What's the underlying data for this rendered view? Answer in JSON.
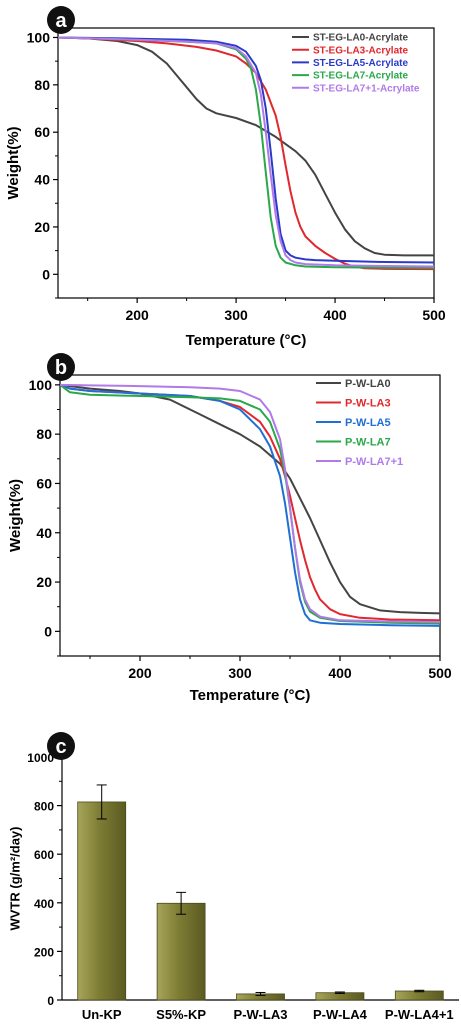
{
  "chart_data": [
    {
      "type": "line",
      "panel_label": "a",
      "title": "",
      "xlabel": "Temperature (°C)",
      "ylabel": "Weight(%)",
      "xlim": [
        120,
        500
      ],
      "ylim": [
        -10,
        104
      ],
      "xticks": [
        200,
        300,
        400,
        500
      ],
      "yticks": [
        0,
        20,
        40,
        60,
        80,
        100
      ],
      "grid": false,
      "legend_position": "top-right",
      "series": [
        {
          "name": "ST-EG-LA0-Acrylate",
          "color": "#444444",
          "x": [
            120,
            150,
            180,
            200,
            215,
            230,
            240,
            250,
            260,
            270,
            280,
            300,
            320,
            340,
            360,
            370,
            380,
            390,
            400,
            410,
            420,
            430,
            440,
            450,
            470,
            500
          ],
          "y": [
            100,
            99.6,
            98.5,
            96.8,
            94,
            89,
            84,
            79,
            74,
            70,
            68,
            66,
            63,
            58,
            52,
            48,
            42,
            34,
            26,
            19,
            14,
            11,
            9,
            8.3,
            8,
            8
          ]
        },
        {
          "name": "ST-EG-LA3-Acrylate",
          "color": "#e0282d",
          "x": [
            120,
            150,
            200,
            230,
            260,
            280,
            300,
            310,
            320,
            330,
            340,
            345,
            350,
            355,
            360,
            365,
            370,
            380,
            390,
            400,
            410,
            420,
            430,
            450,
            500
          ],
          "y": [
            100,
            99.6,
            98.5,
            97.5,
            96,
            94.5,
            92,
            89,
            85,
            78,
            67,
            58,
            46,
            35,
            26,
            20,
            16,
            12,
            9,
            6.5,
            4.5,
            3.2,
            2.6,
            2.3,
            2.2
          ]
        },
        {
          "name": "ST-EG-LA5-Acrylate",
          "color": "#2a3bc9",
          "x": [
            120,
            150,
            200,
            250,
            280,
            300,
            310,
            320,
            325,
            330,
            335,
            340,
            345,
            350,
            355,
            360,
            370,
            380,
            400,
            450,
            500
          ],
          "y": [
            100,
            99.8,
            99.5,
            99,
            98.2,
            96.5,
            94,
            88,
            82,
            70,
            52,
            32,
            17,
            10,
            8,
            7,
            6.3,
            6,
            5.7,
            5.2,
            5
          ]
        },
        {
          "name": "ST-EG-LA7-Acrylate",
          "color": "#2aa84a",
          "x": [
            120,
            150,
            200,
            250,
            280,
            300,
            310,
            315,
            320,
            325,
            330,
            335,
            340,
            345,
            350,
            360,
            370,
            400,
            450,
            500
          ],
          "y": [
            100,
            99.7,
            99,
            98.2,
            97.5,
            95,
            91,
            87,
            78,
            63,
            43,
            24,
            12,
            7,
            5,
            3.8,
            3.3,
            3,
            2.8,
            2.7
          ]
        },
        {
          "name": "ST-EG-LA7+1-Acrylate",
          "color": "#b07ae8",
          "x": [
            120,
            150,
            200,
            250,
            280,
            300,
            310,
            320,
            325,
            330,
            335,
            340,
            345,
            350,
            355,
            360,
            370,
            400,
            450,
            500
          ],
          "y": [
            100,
            99.7,
            99,
            98.3,
            97.5,
            95.5,
            92,
            85,
            76,
            60,
            42,
            25,
            14,
            8,
            6,
            5,
            4.3,
            3.8,
            3.5,
            3.3
          ]
        }
      ]
    },
    {
      "type": "line",
      "panel_label": "b",
      "title": "",
      "xlabel": "Temperature (°C)",
      "ylabel": "Weight(%)",
      "xlim": [
        120,
        500
      ],
      "ylim": [
        -10,
        104
      ],
      "xticks": [
        200,
        300,
        400,
        500
      ],
      "yticks": [
        0,
        20,
        40,
        60,
        80,
        100
      ],
      "grid": false,
      "legend_position": "top-right",
      "series": [
        {
          "name": "P-W-LA0",
          "color": "#444444",
          "x": [
            120,
            150,
            180,
            200,
            230,
            260,
            280,
            300,
            320,
            340,
            350,
            360,
            370,
            380,
            390,
            400,
            410,
            420,
            440,
            460,
            480,
            500
          ],
          "y": [
            100,
            98.5,
            97.5,
            96.5,
            94,
            88,
            84,
            80,
            75,
            68,
            62,
            54,
            46,
            37,
            28,
            20,
            14,
            11,
            8.5,
            7.8,
            7.5,
            7.3
          ]
        },
        {
          "name": "P-W-LA3",
          "color": "#e0282d",
          "x": [
            120,
            130,
            150,
            200,
            250,
            280,
            300,
            320,
            330,
            340,
            345,
            350,
            355,
            360,
            365,
            370,
            375,
            380,
            390,
            400,
            420,
            450,
            500
          ],
          "y": [
            100,
            98.5,
            97.5,
            96.5,
            95.5,
            93.5,
            91,
            85,
            79,
            70,
            63,
            55,
            46,
            37,
            29,
            22,
            17,
            13,
            9,
            7,
            5.5,
            4.8,
            4.5
          ]
        },
        {
          "name": "P-W-LA5",
          "color": "#1f6fd6",
          "x": [
            120,
            130,
            150,
            200,
            250,
            280,
            300,
            320,
            330,
            340,
            345,
            350,
            355,
            360,
            365,
            370,
            380,
            400,
            450,
            500
          ],
          "y": [
            100,
            98.5,
            97.5,
            96.5,
            95.5,
            93.5,
            90,
            82,
            75,
            63,
            52,
            38,
            24,
            13,
            7,
            4.5,
            3.5,
            3,
            2.5,
            2.2
          ]
        },
        {
          "name": "P-W-LA7",
          "color": "#2aa84a",
          "x": [
            120,
            130,
            150,
            200,
            250,
            280,
            300,
            320,
            330,
            340,
            345,
            350,
            355,
            360,
            365,
            370,
            380,
            400,
            450,
            500
          ],
          "y": [
            100,
            97,
            96,
            95.5,
            95,
            94.5,
            93.5,
            90,
            85,
            74,
            64,
            50,
            34,
            20,
            12,
            8,
            5.5,
            4.2,
            3.5,
            3.2
          ]
        },
        {
          "name": "P-W-LA7+1",
          "color": "#b07ae8",
          "x": [
            120,
            150,
            200,
            250,
            280,
            300,
            320,
            330,
            340,
            345,
            350,
            355,
            360,
            365,
            370,
            380,
            400,
            450,
            500
          ],
          "y": [
            100,
            99.8,
            99.5,
            99,
            98.5,
            97.5,
            94,
            89,
            78,
            66,
            50,
            34,
            21,
            13,
            9,
            6,
            4.5,
            4,
            3.8
          ]
        }
      ]
    },
    {
      "type": "bar",
      "panel_label": "c",
      "title": "",
      "xlabel": "",
      "ylabel": "WVTR (g/m²/day)",
      "ylim": [
        0,
        1000
      ],
      "yticks": [
        0,
        200,
        400,
        600,
        800,
        1000
      ],
      "grid": false,
      "categories": [
        "Un-KP",
        "S5%-KP",
        "P-W-LA3",
        "P-W-LA4",
        "P-W-LA4+1"
      ],
      "values": [
        815,
        398,
        25,
        30,
        37
      ],
      "errors": [
        70,
        45,
        6,
        3,
        3
      ],
      "bar_color": "#7e7d35"
    }
  ]
}
